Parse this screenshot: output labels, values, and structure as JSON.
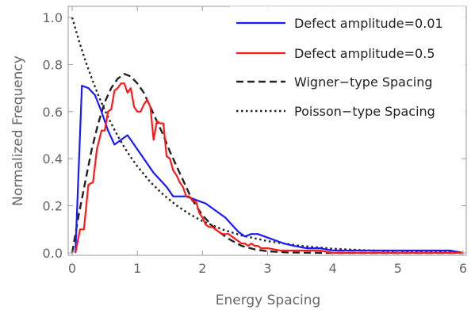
{
  "chart_data": {
    "type": "line",
    "title": "",
    "xlabel": "Energy Spacing",
    "ylabel": "Normalized Frequency",
    "xlim": [
      0,
      6
    ],
    "ylim": [
      0,
      1.05
    ],
    "xticks": [
      "0",
      "1",
      "2",
      "3",
      "4",
      "5",
      "6"
    ],
    "yticks": [
      "0.0",
      "0.2",
      "0.4",
      "0.6",
      "0.8",
      "1.0"
    ],
    "grid": false,
    "legend_position": "top-right",
    "series": [
      {
        "name": "Defect amplitude=0.01",
        "color": "#1a1aff",
        "style": "solid",
        "x": [
          0.05,
          0.15,
          0.25,
          0.35,
          0.45,
          0.55,
          0.65,
          0.75,
          0.85,
          0.95,
          1.05,
          1.15,
          1.25,
          1.35,
          1.45,
          1.55,
          1.65,
          1.75,
          1.85,
          1.95,
          2.05,
          2.15,
          2.25,
          2.35,
          2.45,
          2.55,
          2.65,
          2.75,
          2.85,
          2.95,
          3.05,
          3.15,
          3.25,
          3.4,
          3.6,
          3.8,
          4.0,
          4.3,
          4.6,
          5.0,
          5.5,
          5.8,
          6.0
        ],
        "y": [
          0.0,
          0.71,
          0.7,
          0.67,
          0.6,
          0.52,
          0.46,
          0.48,
          0.5,
          0.46,
          0.42,
          0.38,
          0.34,
          0.31,
          0.28,
          0.24,
          0.24,
          0.24,
          0.23,
          0.22,
          0.21,
          0.19,
          0.17,
          0.15,
          0.12,
          0.09,
          0.07,
          0.08,
          0.08,
          0.07,
          0.06,
          0.05,
          0.04,
          0.03,
          0.02,
          0.02,
          0.01,
          0.01,
          0.01,
          0.01,
          0.01,
          0.01,
          0.0
        ]
      },
      {
        "name": "Defect amplitude=0.5",
        "color": "#ff1a1a",
        "style": "solid",
        "x": [
          0.05,
          0.12,
          0.18,
          0.25,
          0.32,
          0.38,
          0.45,
          0.5,
          0.55,
          0.6,
          0.65,
          0.7,
          0.75,
          0.8,
          0.85,
          0.9,
          0.95,
          1.0,
          1.05,
          1.1,
          1.15,
          1.2,
          1.25,
          1.3,
          1.35,
          1.4,
          1.45,
          1.5,
          1.55,
          1.6,
          1.65,
          1.7,
          1.75,
          1.8,
          1.85,
          1.9,
          1.95,
          2.0,
          2.05,
          2.1,
          2.15,
          2.2,
          2.25,
          2.3,
          2.35,
          2.4,
          2.45,
          2.5,
          2.55,
          2.6,
          2.65,
          2.7,
          2.75,
          2.8,
          2.85,
          2.9,
          3.0,
          3.2,
          3.4,
          3.6,
          3.8,
          4.0,
          4.5,
          5.0,
          5.5,
          6.0
        ],
        "y": [
          0.0,
          0.1,
          0.1,
          0.29,
          0.3,
          0.44,
          0.52,
          0.52,
          0.6,
          0.61,
          0.69,
          0.7,
          0.72,
          0.72,
          0.68,
          0.7,
          0.62,
          0.6,
          0.6,
          0.63,
          0.65,
          0.62,
          0.48,
          0.56,
          0.55,
          0.55,
          0.41,
          0.4,
          0.35,
          0.33,
          0.3,
          0.28,
          0.24,
          0.24,
          0.22,
          0.22,
          0.17,
          0.15,
          0.12,
          0.11,
          0.11,
          0.1,
          0.09,
          0.08,
          0.08,
          0.08,
          0.07,
          0.06,
          0.05,
          0.04,
          0.04,
          0.03,
          0.04,
          0.03,
          0.03,
          0.02,
          0.02,
          0.01,
          0.01,
          0.01,
          0.01,
          0.0,
          0.0,
          0.0,
          0.0,
          0.0
        ]
      },
      {
        "name": "Wigner−type Spacing",
        "color": "#222222",
        "style": "dashed",
        "x": [
          0.0,
          0.1,
          0.2,
          0.3,
          0.4,
          0.5,
          0.6,
          0.7,
          0.8,
          0.9,
          1.0,
          1.1,
          1.2,
          1.3,
          1.4,
          1.5,
          1.6,
          1.7,
          1.8,
          1.9,
          2.0,
          2.2,
          2.4,
          2.6,
          2.8,
          3.0,
          3.3,
          3.6,
          4.0,
          5.0,
          6.0
        ],
        "y": [
          0.0,
          0.16,
          0.3,
          0.44,
          0.55,
          0.64,
          0.7,
          0.74,
          0.76,
          0.75,
          0.72,
          0.68,
          0.62,
          0.56,
          0.5,
          0.43,
          0.37,
          0.31,
          0.25,
          0.2,
          0.16,
          0.1,
          0.06,
          0.03,
          0.015,
          0.007,
          0.002,
          0.001,
          0.0,
          0.0,
          0.0
        ]
      },
      {
        "name": "Poisson−type Spacing",
        "color": "#222222",
        "style": "dotted",
        "x": [
          0.0,
          0.1,
          0.2,
          0.3,
          0.4,
          0.5,
          0.6,
          0.7,
          0.8,
          0.9,
          1.0,
          1.2,
          1.4,
          1.6,
          1.8,
          2.0,
          2.3,
          2.6,
          3.0,
          3.5,
          4.0,
          4.5,
          5.0,
          5.5,
          6.0
        ],
        "y": [
          1.0,
          0.905,
          0.819,
          0.741,
          0.67,
          0.607,
          0.549,
          0.497,
          0.449,
          0.407,
          0.368,
          0.301,
          0.247,
          0.202,
          0.165,
          0.135,
          0.1,
          0.074,
          0.05,
          0.03,
          0.018,
          0.011,
          0.007,
          0.004,
          0.002
        ]
      }
    ]
  }
}
